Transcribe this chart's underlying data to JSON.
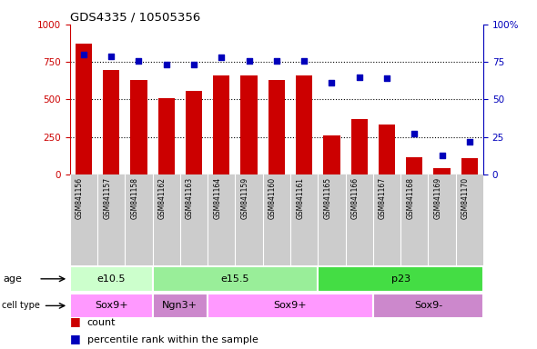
{
  "title": "GDS4335 / 10505356",
  "samples": [
    "GSM841156",
    "GSM841157",
    "GSM841158",
    "GSM841162",
    "GSM841163",
    "GSM841164",
    "GSM841159",
    "GSM841160",
    "GSM841161",
    "GSM841165",
    "GSM841166",
    "GSM841167",
    "GSM841168",
    "GSM841169",
    "GSM841170"
  ],
  "counts": [
    870,
    695,
    630,
    510,
    555,
    660,
    660,
    630,
    660,
    260,
    370,
    335,
    115,
    40,
    110
  ],
  "percentiles": [
    80,
    79,
    76,
    73,
    73,
    78,
    76,
    76,
    76,
    61,
    65,
    64,
    27,
    13,
    22
  ],
  "ylim_left": [
    0,
    1000
  ],
  "ylim_right": [
    0,
    100
  ],
  "yticks_left": [
    0,
    250,
    500,
    750,
    1000
  ],
  "yticks_right": [
    0,
    25,
    50,
    75,
    100
  ],
  "bar_color": "#cc0000",
  "dot_color": "#0000bb",
  "age_groups": [
    {
      "label": "e10.5",
      "start": 0,
      "end": 3,
      "color": "#ccffcc"
    },
    {
      "label": "e15.5",
      "start": 3,
      "end": 9,
      "color": "#99ee99"
    },
    {
      "label": "p23",
      "start": 9,
      "end": 15,
      "color": "#44dd44"
    }
  ],
  "cell_groups": [
    {
      "label": "Sox9+",
      "start": 0,
      "end": 3,
      "color": "#ff99ff"
    },
    {
      "label": "Ngn3+",
      "start": 3,
      "end": 5,
      "color": "#cc88cc"
    },
    {
      "label": "Sox9+",
      "start": 5,
      "end": 11,
      "color": "#ff99ff"
    },
    {
      "label": "Sox9-",
      "start": 11,
      "end": 15,
      "color": "#cc88cc"
    }
  ],
  "legend_count_label": "count",
  "legend_pct_label": "percentile rank within the sample",
  "bar_color_left": "#cc0000",
  "right_axis_color": "#0000bb",
  "xtick_bg": "#cccccc"
}
